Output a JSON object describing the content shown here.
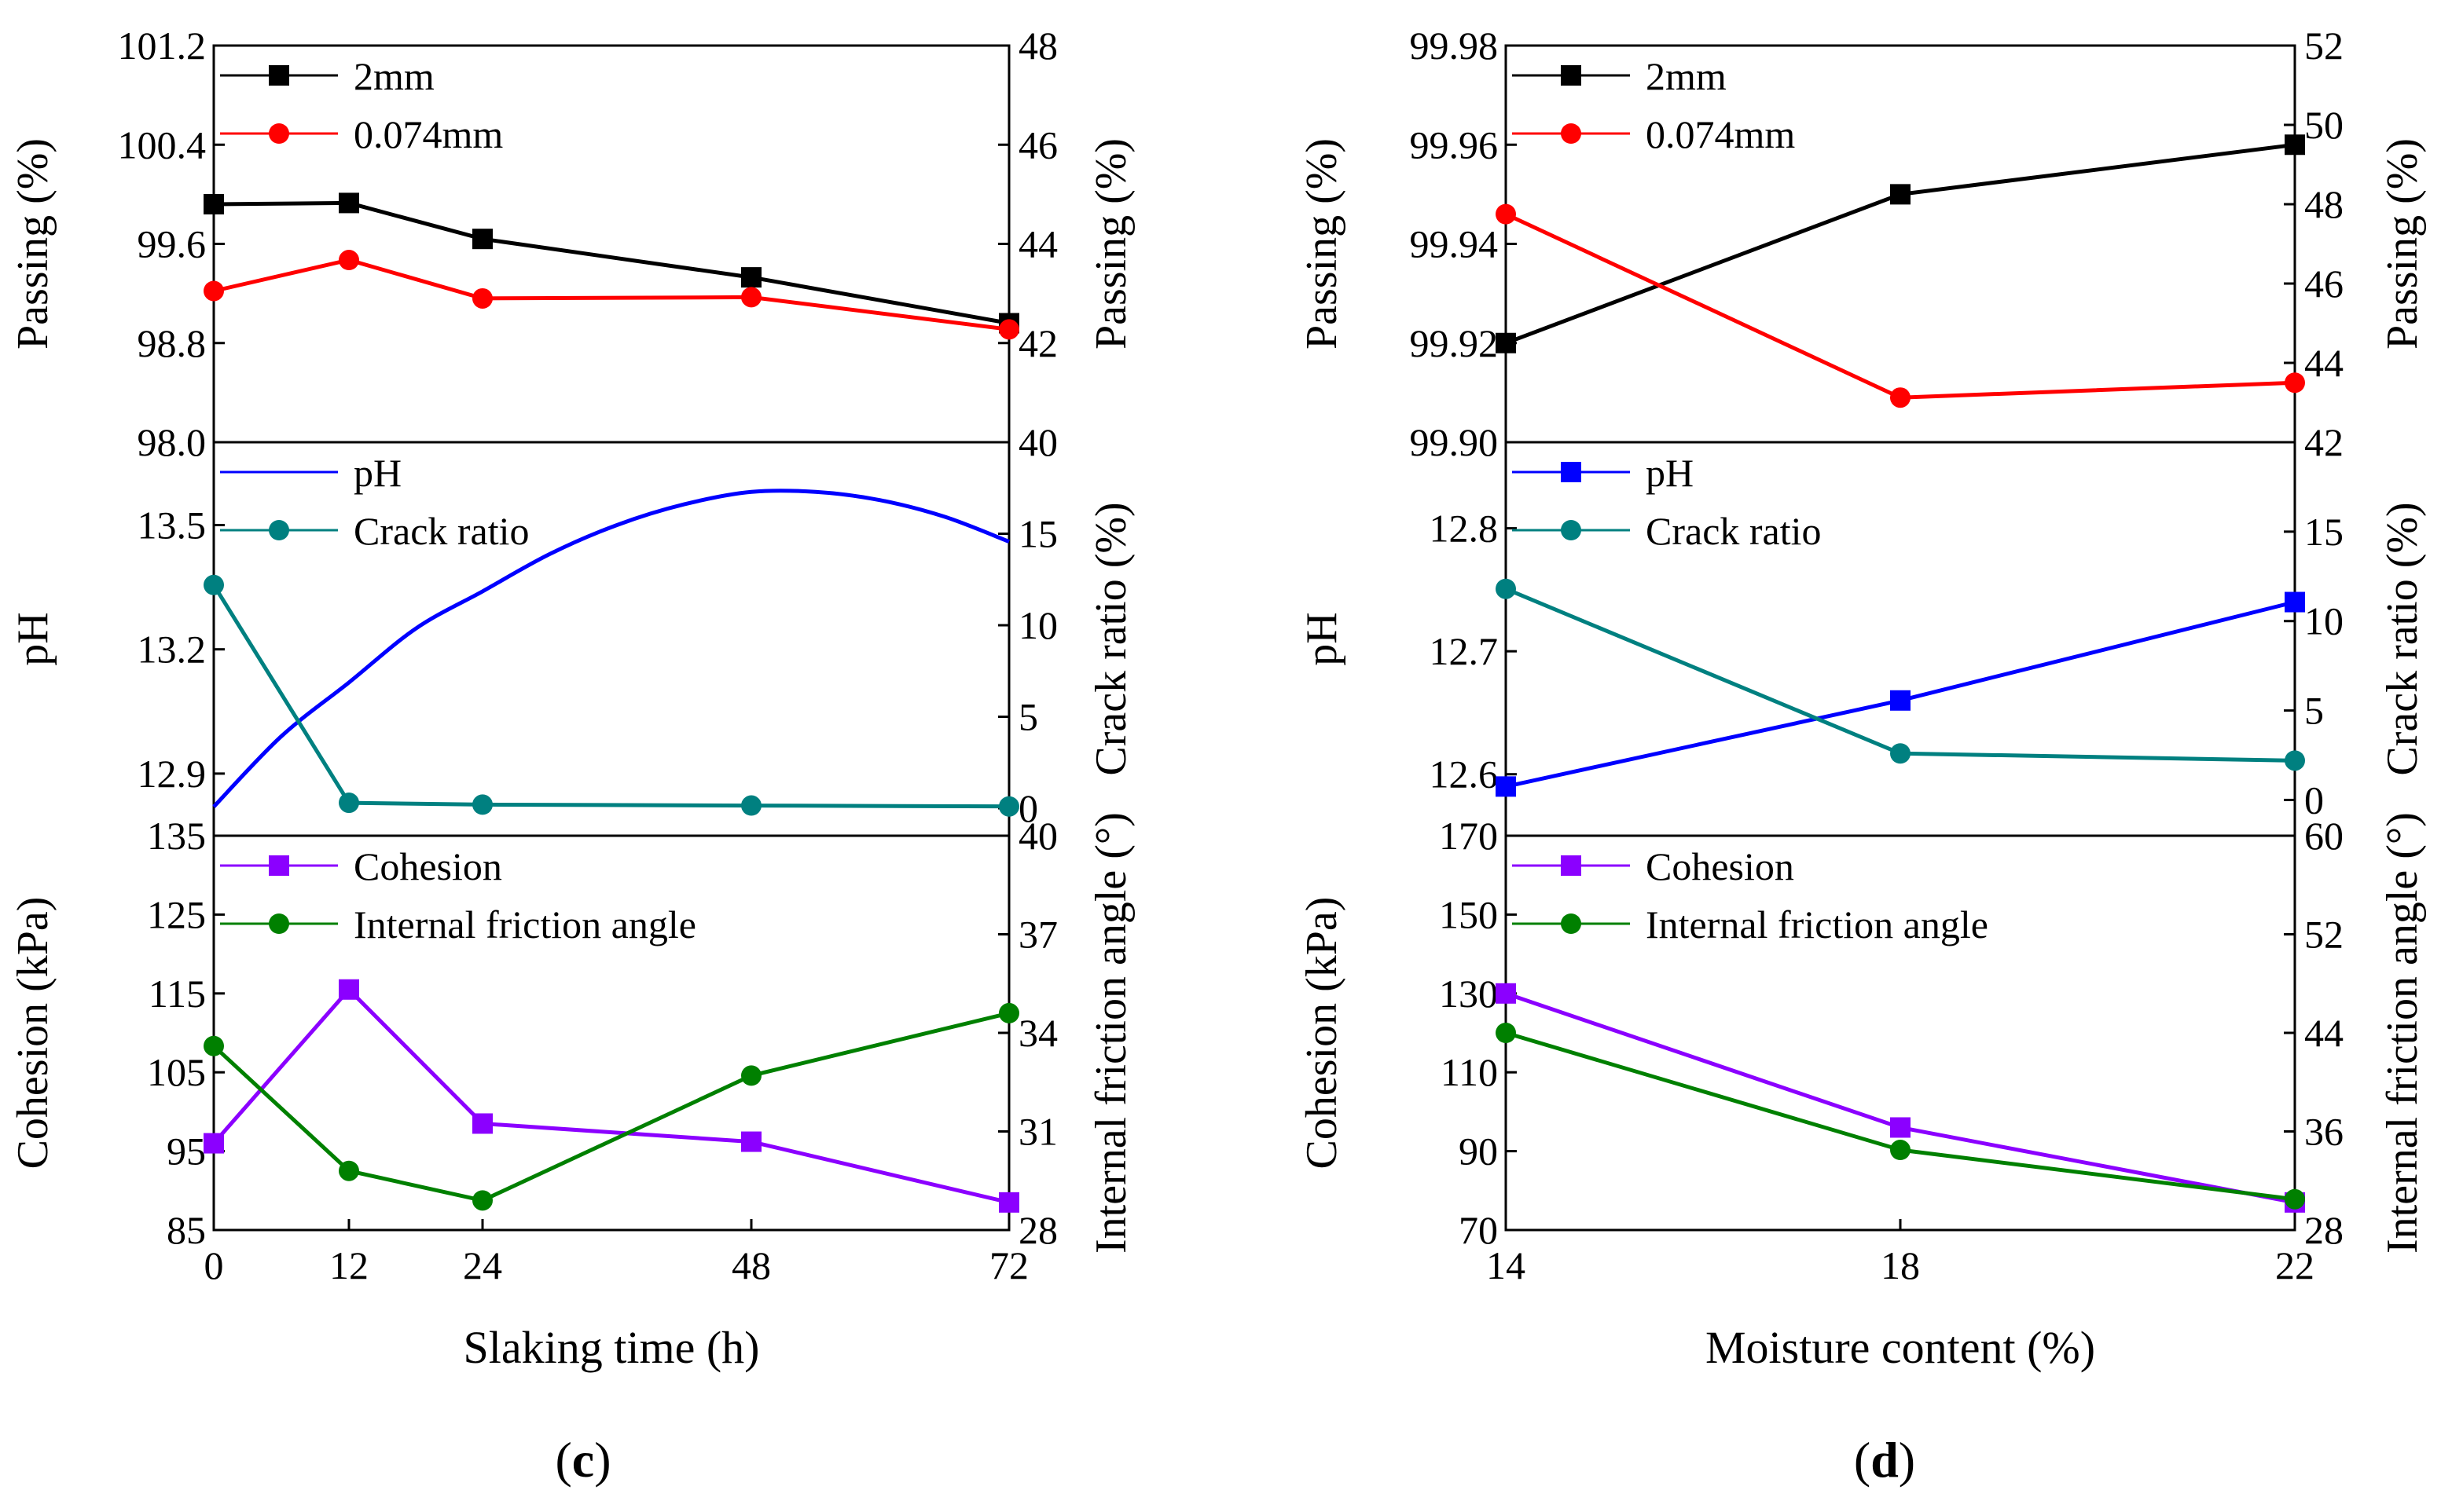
{
  "chart_data": [
    {
      "type": "line",
      "panel_label": "c",
      "xlabel": "Slaking time (h)",
      "x_ticks": [
        "0",
        "12",
        "24",
        "48",
        "72"
      ],
      "x_tick_values": [
        0,
        12,
        24,
        48,
        72
      ],
      "x_scale": "categorical-like (uneven spacing)",
      "subplots": [
        {
          "left_ylabel": "Passing (%)",
          "right_ylabel": "Passing (%)",
          "left_ylim": [
            98.0,
            101.2
          ],
          "left_ticks": [
            "98.0",
            "98.8",
            "99.6",
            "100.4",
            "101.2"
          ],
          "right_ylim": [
            40,
            48
          ],
          "right_ticks": [
            "40",
            "42",
            "44",
            "46",
            "48"
          ],
          "series": [
            {
              "name": "2mm",
              "color": "#000000",
              "marker": "square",
              "axis": "left",
              "x": [
                0,
                12,
                24,
                48,
                72
              ],
              "values": [
                99.92,
                99.93,
                99.64,
                99.33,
                98.96
              ]
            },
            {
              "name": "0.074mm",
              "color": "#ff0000",
              "marker": "circle",
              "axis": "left",
              "x": [
                0,
                12,
                24,
                48,
                72
              ],
              "values": [
                99.22,
                99.47,
                99.16,
                99.17,
                98.91
              ]
            }
          ]
        },
        {
          "left_ylabel": "pH",
          "right_ylabel": "Crack ratio (%)",
          "left_ylim": [
            12.75,
            13.7
          ],
          "left_ticks": [
            "12.9",
            "13.2",
            "13.5"
          ],
          "left_tick_values": [
            12.9,
            13.2,
            13.5
          ],
          "right_ylim": [
            -1.5,
            20
          ],
          "right_ticks": [
            "0",
            "5",
            "10",
            "15"
          ],
          "right_tick_values": [
            0,
            5,
            10,
            15
          ],
          "series": [
            {
              "name": "pH",
              "color": "#0000ff",
              "marker": "none",
              "axis": "left",
              "smooth": true,
              "x": [
                0,
                6,
                12,
                18,
                24,
                30,
                36,
                42,
                48,
                54,
                60,
                66,
                72
              ],
              "values": [
                12.82,
                12.99,
                13.12,
                13.25,
                13.34,
                13.43,
                13.5,
                13.55,
                13.58,
                13.58,
                13.56,
                13.52,
                13.46
              ]
            },
            {
              "name": "Crack ratio",
              "color": "#008080",
              "marker": "circle",
              "axis": "right",
              "x": [
                0,
                12,
                24,
                48,
                72
              ],
              "values": [
                12.2,
                0.3,
                0.2,
                0.15,
                0.1
              ]
            }
          ]
        },
        {
          "left_ylabel": "Cohesion (kPa)",
          "right_ylabel": "Internal friction angle (°)",
          "left_ylim": [
            85,
            135
          ],
          "left_ticks": [
            "85",
            "95",
            "105",
            "115",
            "125",
            "135"
          ],
          "right_ylim": [
            28,
            40
          ],
          "right_ticks": [
            "28",
            "31",
            "34",
            "37",
            "40"
          ],
          "series": [
            {
              "name": "Cohesion",
              "color": "#8b00ff",
              "marker": "square",
              "axis": "left",
              "x": [
                0,
                12,
                24,
                48,
                72
              ],
              "values": [
                96,
                115.5,
                98.5,
                96.2,
                88.5
              ]
            },
            {
              "name": "Internal friction angle",
              "color": "#008000",
              "marker": "circle",
              "axis": "right",
              "x": [
                0,
                12,
                24,
                48,
                72
              ],
              "values": [
                33.6,
                29.8,
                28.9,
                32.7,
                34.6
              ]
            }
          ]
        }
      ]
    },
    {
      "type": "line",
      "panel_label": "d",
      "xlabel": "Moisture content (%)",
      "x_ticks": [
        "14",
        "18",
        "22"
      ],
      "x_tick_values": [
        14,
        18,
        22
      ],
      "subplots": [
        {
          "left_ylabel": "Passing (%)",
          "right_ylabel": "Passing (%)",
          "left_ylim": [
            99.9,
            99.98
          ],
          "left_ticks": [
            "99.90",
            "99.92",
            "99.94",
            "99.96",
            "99.98"
          ],
          "right_ylim": [
            42,
            52
          ],
          "right_ticks": [
            "42",
            "44",
            "46",
            "48",
            "50",
            "52"
          ],
          "series": [
            {
              "name": "2mm",
              "color": "#000000",
              "marker": "square",
              "axis": "left",
              "x": [
                14,
                18,
                22
              ],
              "values": [
                99.92,
                99.95,
                99.96
              ]
            },
            {
              "name": "0.074mm",
              "color": "#ff0000",
              "marker": "circle",
              "axis": "left",
              "x": [
                14,
                18,
                22
              ],
              "values": [
                99.946,
                99.909,
                99.912
              ]
            }
          ]
        },
        {
          "left_ylabel": "pH",
          "right_ylabel": "Crack ratio (%)",
          "left_ylim": [
            12.55,
            12.87
          ],
          "left_ticks": [
            "12.6",
            "12.7",
            "12.8"
          ],
          "left_tick_values": [
            12.6,
            12.7,
            12.8
          ],
          "right_ylim": [
            -2,
            20
          ],
          "right_ticks": [
            "0",
            "5",
            "10",
            "15"
          ],
          "right_tick_values": [
            0,
            5,
            10,
            15
          ],
          "series": [
            {
              "name": "pH",
              "color": "#0000ff",
              "marker": "square",
              "axis": "left",
              "x": [
                14,
                18,
                22
              ],
              "values": [
                12.59,
                12.66,
                12.74
              ]
            },
            {
              "name": "Crack ratio",
              "color": "#008080",
              "marker": "circle",
              "axis": "right",
              "x": [
                14,
                18,
                22
              ],
              "values": [
                11.8,
                2.6,
                2.2
              ]
            }
          ]
        },
        {
          "left_ylabel": "Cohesion (kPa)",
          "right_ylabel": "Internal friction angle (°)",
          "left_ylim": [
            70,
            170
          ],
          "left_ticks": [
            "70",
            "90",
            "110",
            "130",
            "150",
            "170"
          ],
          "right_ylim": [
            28,
            60
          ],
          "right_ticks": [
            "28",
            "36",
            "44",
            "52",
            "60"
          ],
          "series": [
            {
              "name": "Cohesion",
              "color": "#8b00ff",
              "marker": "square",
              "axis": "left",
              "x": [
                14,
                18,
                22
              ],
              "values": [
                130,
                96,
                77
              ]
            },
            {
              "name": "Internal friction angle",
              "color": "#008000",
              "marker": "circle",
              "axis": "right",
              "x": [
                14,
                18,
                22
              ],
              "values": [
                44,
                34.5,
                30.5
              ]
            }
          ]
        }
      ]
    }
  ]
}
